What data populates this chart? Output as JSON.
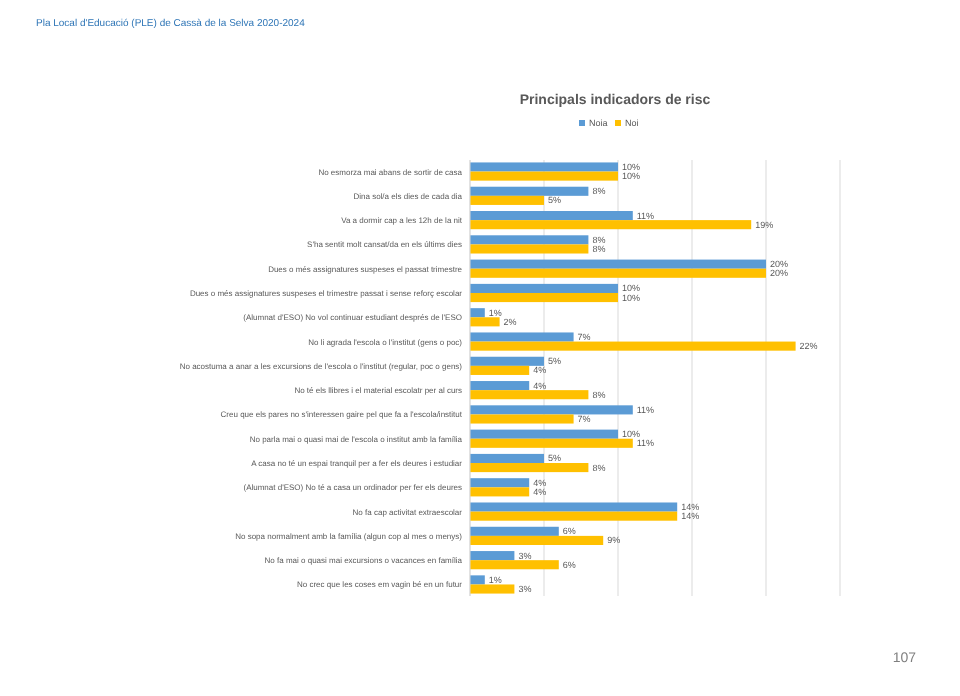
{
  "chart_data": {
    "type": "bar",
    "orientation": "horizontal",
    "title": "Principals indicadors de risc",
    "annotations": [
      "Pla Local d'Educació (PLE) de Cassà  de la Selva 2020-2024",
      "107"
    ],
    "categories": [
      "No esmorza mai abans de sortir de casa",
      "Dina sol/a els dies de cada dia",
      "Va a dormir cap a les 12h de la nit",
      "S'ha sentit molt cansat/da en els últims dies",
      "Dues o més assignatures suspeses el passat trimestre",
      "Dues o més assignatures suspeses el trimestre passat i sense reforç escolar",
      "(Alumnat d'ESO) No vol continuar estudiant després de l'ESO",
      "No li agrada l'escola o l'institut (gens o poc)",
      "No acostuma a anar a les excursions de l'escola o l'institut (regular, poc o gens)",
      "No té els llibres i el material escolatr per al curs",
      "Creu que els pares no s'interessen gaire pel que fa a l'escola/institut",
      "No parla mai o quasi mai de l'escola o institut amb la família",
      "A casa no té un espai tranquil per a fer els deures i estudiar",
      "(Alumnat d'ESO) No té a casa un ordinador per fer els deures",
      "No fa cap activitat extraescolar",
      "No sopa normalment amb la família (algun cop al mes o menys)",
      "No fa mai o quasi mai excursions o vacances en família",
      "No crec que les coses em vagin bé en un futur"
    ],
    "series": [
      {
        "name": "Noia",
        "color": "#5b9bd5",
        "values": [
          10,
          8,
          11,
          8,
          20,
          10,
          1,
          7,
          5,
          4,
          11,
          10,
          5,
          4,
          14,
          6,
          3,
          1
        ],
        "value_labels": [
          "10%",
          "8%",
          "11%",
          "8%",
          "20%",
          "10%",
          "1%",
          "7%",
          "5%",
          "4%",
          "11%",
          "10%",
          "5%",
          "4%",
          "14%",
          "6%",
          "3%",
          "1%"
        ]
      },
      {
        "name": "Noi",
        "color": "#ffc000",
        "values": [
          10,
          5,
          19,
          8,
          20,
          10,
          2,
          22,
          4,
          8,
          7,
          11,
          8,
          4,
          14,
          9,
          6,
          3
        ],
        "value_labels": [
          "10%",
          "5%",
          "19%",
          "8%",
          "20%",
          "10%",
          "2%",
          "22%",
          "4%",
          "8%",
          "7%",
          "11%",
          "8%",
          "4%",
          "14%",
          "9%",
          "6%",
          "3%"
        ]
      }
    ],
    "xlim": [
      0,
      25
    ],
    "xticks": [
      {
        "value": 0,
        "label": null
      },
      {
        "value": 5,
        "label": null
      },
      {
        "value": 10,
        "label": null
      },
      {
        "value": 15,
        "label": null
      },
      {
        "value": 20,
        "label": null
      },
      {
        "value": 25,
        "label": null
      }
    ],
    "tick_labels": "y",
    "grid": "x",
    "legend": "top"
  }
}
